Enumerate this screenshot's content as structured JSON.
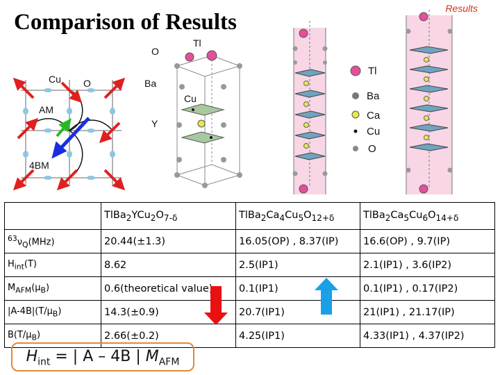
{
  "title": "Comparison of Results",
  "header_tag": "Results",
  "spin_diagram": {
    "label_o_top": "O",
    "label_cu": "Cu",
    "label_o": "O",
    "label_am": "AM",
    "label_4bm": "4BM"
  },
  "crystal": {
    "label_tl": "Tl",
    "label_ba": "Ba",
    "label_cu": "Cu",
    "label_y": "Y"
  },
  "legend": {
    "items": [
      {
        "label": "Tl",
        "color": "#e24f9a"
      },
      {
        "label": "Ba",
        "color": "#777777"
      },
      {
        "label": "Ca",
        "color": "#e8e84a"
      },
      {
        "label": "Cu",
        "color": "#111111"
      },
      {
        "label": "O",
        "color": "#888888"
      }
    ]
  },
  "table": {
    "header": {
      "col1_pre": "TlBa",
      "col1_s1": "2",
      "col1_mid": "YCu",
      "col1_s2": "2",
      "col1_o": "O",
      "col1_s3": "7-δ",
      "col2_pre": "TlBa",
      "col2_s1": "2",
      "col2_mid": "Ca",
      "col2_s2": "4",
      "col2_cu": "Cu",
      "col2_s3": "5",
      "col2_o": "O",
      "col2_s4": "12+δ",
      "col3_pre": "TlBa",
      "col3_s1": "2",
      "col3_mid": "Ca",
      "col3_s2": "5",
      "col3_cu": "Cu",
      "col3_s3": "6",
      "col3_o": "O",
      "col3_s4": "14+δ"
    },
    "rows": [
      {
        "label_sup": "63",
        "label_main": "ν",
        "label_sub": "Q",
        "label_tail": "(MHz)",
        "v1": "20.44(±1.3)",
        "v2": "16.05(OP) , 8.37(IP)",
        "v3": "16.6(OP) , 9.7(IP)"
      },
      {
        "label_main": "H",
        "label_sub": "int",
        "label_tail": "(T)",
        "v1": "8.62",
        "v2": "2.5(IP1)",
        "v3": "2.1(IP1) , 3.6(IP2)"
      },
      {
        "label_main": "M",
        "label_sub": "AFM",
        "label_tail": "(μ",
        "label_sub2": "B",
        "label_end": ")",
        "v1": "0.6(theoretical value)",
        "v2": "0.1(IP1)",
        "v3": "0.1(IP1) , 0.17(IP2)"
      },
      {
        "label_main": "|A-4B|(T/μ",
        "label_sub": "B",
        "label_tail": ")",
        "v1": "14.3(±0.9)",
        "v2": "20.7(IP1)",
        "v3": "21(IP1) , 21.17(IP)"
      },
      {
        "label_main": "B(T/μ",
        "label_sub": "B",
        "label_tail": ")",
        "v1": "2.66(±0.2)",
        "v2": "4.25(IP1)",
        "v3": "4.33(IP1) , 4.37(IP2)"
      }
    ]
  },
  "formula": {
    "h": "H",
    "h_sub": "int",
    "mid": " = | A – 4B | ",
    "m": "M",
    "m_sub": "AFM"
  },
  "trend_arrows": {
    "down_color": "#e81010",
    "up_color": "#1aa0e6"
  }
}
